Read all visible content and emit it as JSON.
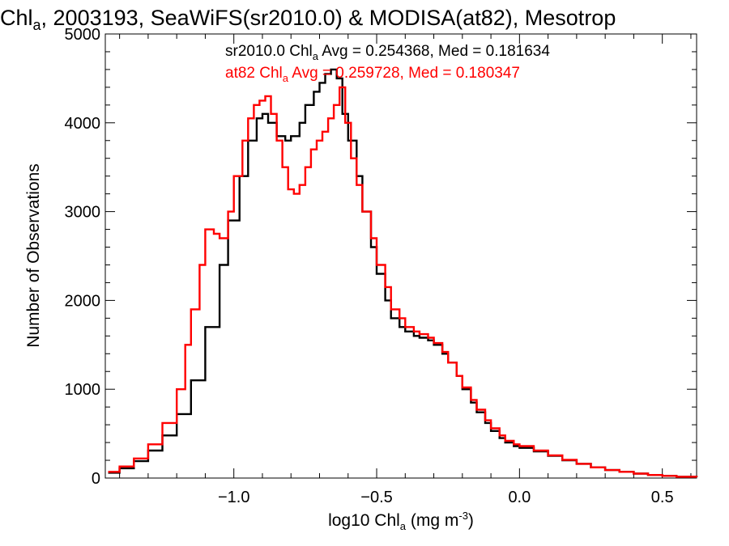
{
  "title": {
    "prefix": "Chl",
    "sub": "a",
    "rest": ", 2003193, SeaWiFS(sr2010.0) & MODISA(at82), Mesotrop"
  },
  "axes": {
    "xlabel": {
      "prefix": "log10 Chl",
      "sub": "a",
      "mid": " (mg m",
      "sup": "-3",
      "end": ")"
    },
    "ylabel": "Number of Observations"
  },
  "legend": [
    {
      "prefix": "sr2010.0 Chl",
      "sub": "a",
      "rest": " Avg = 0.254368, Med = 0.181634",
      "color": "#000000"
    },
    {
      "prefix": "at82 Chl",
      "sub": "a",
      "rest": " Avg = 0.259728, Med = 0.180347",
      "color": "#ff0000"
    }
  ],
  "chart_data": {
    "type": "line",
    "step": true,
    "xlim": [
      -1.45,
      0.62
    ],
    "ylim": [
      0,
      5000
    ],
    "x_ticks": [
      -1.0,
      -0.5,
      0.0,
      0.5
    ],
    "x_tick_labels": [
      "−1.0",
      "−0.5",
      "0.0",
      "0.5"
    ],
    "y_ticks": [
      0,
      1000,
      2000,
      3000,
      4000,
      5000
    ],
    "y_tick_labels": [
      "0",
      "1000",
      "2000",
      "3000",
      "4000",
      "5000"
    ],
    "grid": false,
    "series": [
      {
        "name": "sr2010.0",
        "color": "#000000",
        "points": [
          [
            -1.44,
            60
          ],
          [
            -1.4,
            110
          ],
          [
            -1.35,
            190
          ],
          [
            -1.3,
            310
          ],
          [
            -1.25,
            480
          ],
          [
            -1.2,
            720
          ],
          [
            -1.15,
            1100
          ],
          [
            -1.1,
            1700
          ],
          [
            -1.05,
            2400
          ],
          [
            -1.02,
            2900
          ],
          [
            -0.98,
            3400
          ],
          [
            -0.95,
            3800
          ],
          [
            -0.92,
            4050
          ],
          [
            -0.9,
            4100
          ],
          [
            -0.88,
            4000
          ],
          [
            -0.85,
            3850
          ],
          [
            -0.82,
            3800
          ],
          [
            -0.8,
            3850
          ],
          [
            -0.77,
            4000
          ],
          [
            -0.75,
            4200
          ],
          [
            -0.72,
            4350
          ],
          [
            -0.7,
            4450
          ],
          [
            -0.68,
            4550
          ],
          [
            -0.66,
            4600
          ],
          [
            -0.64,
            4500
          ],
          [
            -0.62,
            4100
          ],
          [
            -0.6,
            3800
          ],
          [
            -0.57,
            3400
          ],
          [
            -0.55,
            3000
          ],
          [
            -0.52,
            2600
          ],
          [
            -0.5,
            2300
          ],
          [
            -0.47,
            2000
          ],
          [
            -0.45,
            1800
          ],
          [
            -0.42,
            1700
          ],
          [
            -0.4,
            1650
          ],
          [
            -0.37,
            1600
          ],
          [
            -0.35,
            1580
          ],
          [
            -0.32,
            1550
          ],
          [
            -0.3,
            1500
          ],
          [
            -0.27,
            1400
          ],
          [
            -0.25,
            1300
          ],
          [
            -0.22,
            1150
          ],
          [
            -0.2,
            1000
          ],
          [
            -0.17,
            850
          ],
          [
            -0.15,
            740
          ],
          [
            -0.12,
            620
          ],
          [
            -0.1,
            530
          ],
          [
            -0.07,
            450
          ],
          [
            -0.05,
            400
          ],
          [
            -0.02,
            360
          ],
          [
            0.0,
            340
          ],
          [
            0.05,
            300
          ],
          [
            0.1,
            250
          ],
          [
            0.15,
            200
          ],
          [
            0.2,
            160
          ],
          [
            0.25,
            120
          ],
          [
            0.3,
            90
          ],
          [
            0.35,
            70
          ],
          [
            0.4,
            50
          ],
          [
            0.45,
            35
          ],
          [
            0.5,
            25
          ],
          [
            0.55,
            15
          ],
          [
            0.62,
            10
          ]
        ]
      },
      {
        "name": "at82",
        "color": "#ff0000",
        "points": [
          [
            -1.44,
            70
          ],
          [
            -1.4,
            130
          ],
          [
            -1.35,
            220
          ],
          [
            -1.3,
            380
          ],
          [
            -1.25,
            620
          ],
          [
            -1.2,
            1000
          ],
          [
            -1.17,
            1500
          ],
          [
            -1.15,
            1900
          ],
          [
            -1.12,
            2400
          ],
          [
            -1.1,
            2800
          ],
          [
            -1.07,
            2750
          ],
          [
            -1.05,
            2700
          ],
          [
            -1.02,
            3000
          ],
          [
            -1.0,
            3400
          ],
          [
            -0.97,
            3800
          ],
          [
            -0.95,
            4050
          ],
          [
            -0.93,
            4200
          ],
          [
            -0.91,
            4250
          ],
          [
            -0.89,
            4300
          ],
          [
            -0.87,
            4100
          ],
          [
            -0.85,
            3800
          ],
          [
            -0.83,
            3500
          ],
          [
            -0.81,
            3250
          ],
          [
            -0.79,
            3200
          ],
          [
            -0.77,
            3300
          ],
          [
            -0.75,
            3500
          ],
          [
            -0.73,
            3700
          ],
          [
            -0.71,
            3800
          ],
          [
            -0.69,
            3900
          ],
          [
            -0.67,
            4050
          ],
          [
            -0.65,
            4200
          ],
          [
            -0.63,
            4400
          ],
          [
            -0.61,
            4000
          ],
          [
            -0.59,
            3600
          ],
          [
            -0.57,
            3300
          ],
          [
            -0.55,
            3000
          ],
          [
            -0.52,
            2700
          ],
          [
            -0.5,
            2400
          ],
          [
            -0.47,
            2150
          ],
          [
            -0.45,
            1900
          ],
          [
            -0.42,
            1800
          ],
          [
            -0.4,
            1700
          ],
          [
            -0.37,
            1650
          ],
          [
            -0.35,
            1620
          ],
          [
            -0.32,
            1580
          ],
          [
            -0.3,
            1520
          ],
          [
            -0.27,
            1420
          ],
          [
            -0.25,
            1300
          ],
          [
            -0.22,
            1150
          ],
          [
            -0.2,
            1020
          ],
          [
            -0.17,
            880
          ],
          [
            -0.15,
            770
          ],
          [
            -0.12,
            650
          ],
          [
            -0.1,
            560
          ],
          [
            -0.07,
            480
          ],
          [
            -0.05,
            420
          ],
          [
            -0.02,
            380
          ],
          [
            0.0,
            360
          ],
          [
            0.05,
            310
          ],
          [
            0.1,
            255
          ],
          [
            0.15,
            205
          ],
          [
            0.2,
            160
          ],
          [
            0.25,
            120
          ],
          [
            0.3,
            90
          ],
          [
            0.35,
            70
          ],
          [
            0.4,
            50
          ],
          [
            0.45,
            35
          ],
          [
            0.5,
            25
          ],
          [
            0.55,
            15
          ],
          [
            0.62,
            10
          ]
        ]
      }
    ]
  }
}
